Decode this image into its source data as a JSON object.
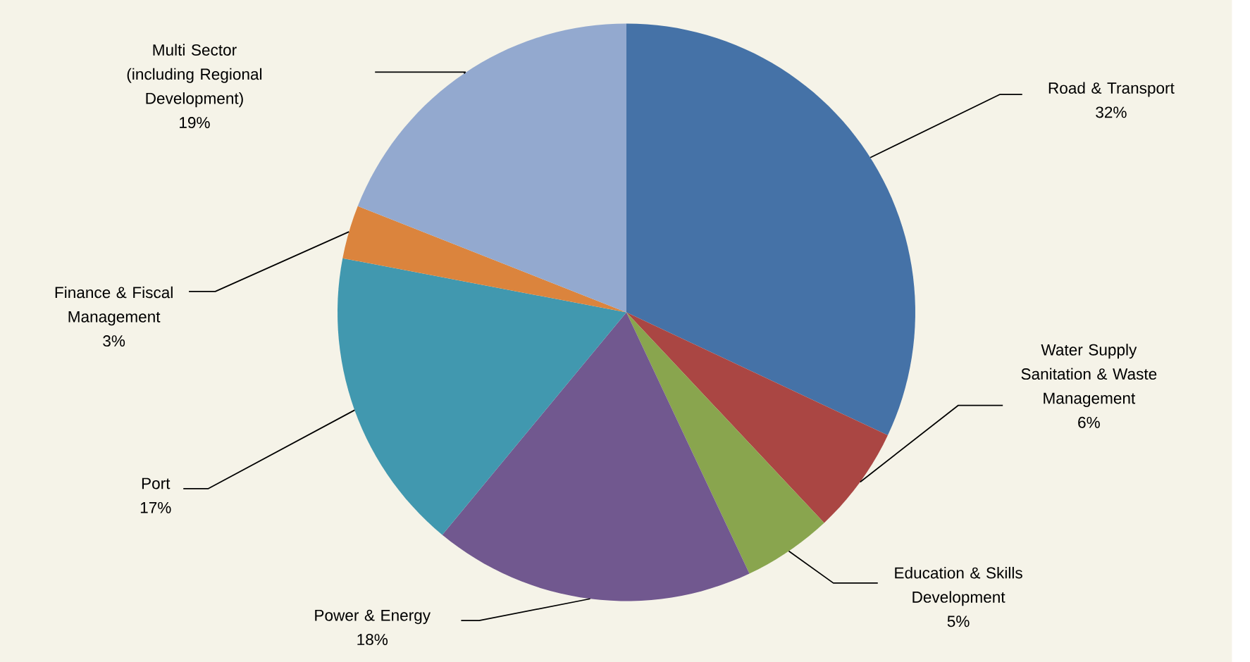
{
  "chart_data": {
    "type": "pie",
    "categories": [
      "Road & Transport",
      "Water Supply Sanitation & Waste Management",
      "Education & Skills Development",
      "Power & Energy",
      "Port",
      "Finance & Fiscal Management",
      "Multi Sector (including Regional Development)"
    ],
    "values": [
      32,
      6,
      5,
      18,
      17,
      3,
      19
    ],
    "colors": [
      "#4572a7",
      "#aa4643",
      "#89a54e",
      "#71588f",
      "#4198af",
      "#db843d",
      "#93a9cf"
    ],
    "value_labels": [
      "32%",
      "6%",
      "5%",
      "18%",
      "17%",
      "3%",
      "19%"
    ]
  }
}
